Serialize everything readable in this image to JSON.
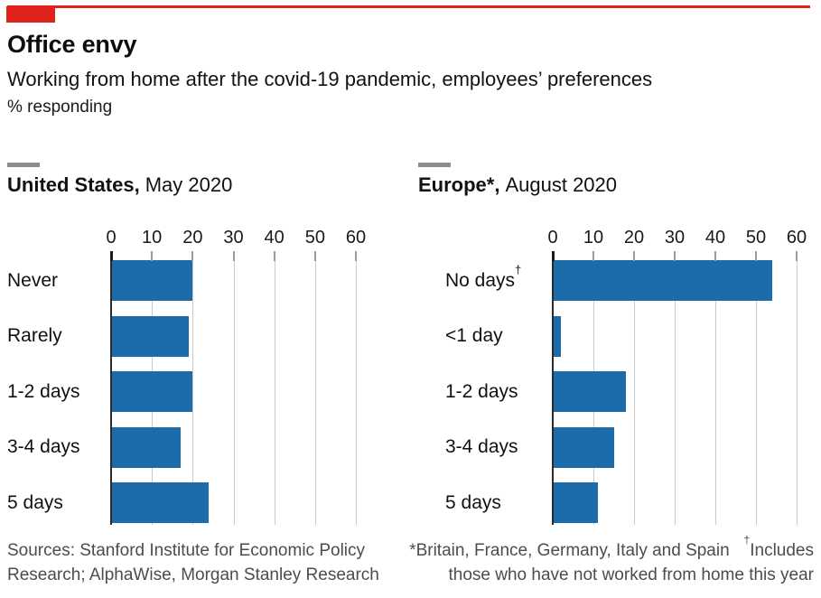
{
  "header": {
    "title": "Office envy",
    "subtitle": "Working from home after the covid-19 pandemic, employees’ preferences",
    "unit_note": "% responding"
  },
  "colors": {
    "accent_red": "#e0231c",
    "bar_blue": "#1c6cac",
    "gridline": "#cbcbcb",
    "axis_zero": "#2b2b2b",
    "section_dash": "#8c8c8c",
    "footer_text": "#4c4c4c"
  },
  "chart_data": [
    {
      "type": "bar",
      "orientation": "horizontal",
      "title_bold": "United States,",
      "title_rest": "May 2020",
      "categories": [
        "Never",
        "Rarely",
        "1-2 days",
        "3-4 days",
        "5 days"
      ],
      "values": [
        20,
        19,
        20,
        17,
        24
      ],
      "xlim": [
        0,
        60
      ],
      "xticks": [
        0,
        10,
        20,
        30,
        40,
        50,
        60
      ],
      "grid": "vertical",
      "legend": "none",
      "bar_color": "#1c6cac"
    },
    {
      "type": "bar",
      "orientation": "horizontal",
      "title_bold": "Europe*,",
      "title_rest": "August 2020",
      "categories": [
        "No days†",
        "<1 day",
        "1-2 days",
        "3-4 days",
        "5 days"
      ],
      "values": [
        54,
        2,
        18,
        15,
        11
      ],
      "xlim": [
        0,
        60
      ],
      "xticks": [
        0,
        10,
        20,
        30,
        40,
        50,
        60
      ],
      "grid": "vertical",
      "legend": "none",
      "bar_color": "#1c6cac"
    }
  ],
  "footer": {
    "sources_lines": [
      "Sources: Stanford Institute for Economic Policy",
      "Research; AlphaWise, Morgan Stanley Research"
    ],
    "footnote_star": "*Britain, France, Germany, Italy and Spain",
    "dagger": "†",
    "footnote_dagger_line1": "Includes",
    "footnote_dagger_line2": "those who have not worked from home this year"
  }
}
